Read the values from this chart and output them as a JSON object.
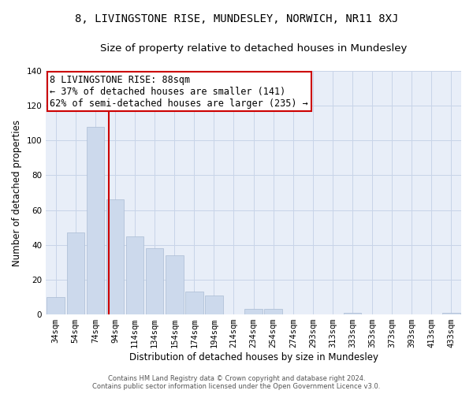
{
  "title": "8, LIVINGSTONE RISE, MUNDESLEY, NORWICH, NR11 8XJ",
  "subtitle": "Size of property relative to detached houses in Mundesley",
  "xlabel": "Distribution of detached houses by size in Mundesley",
  "ylabel": "Number of detached properties",
  "footer_line1": "Contains HM Land Registry data © Crown copyright and database right 2024.",
  "footer_line2": "Contains public sector information licensed under the Open Government Licence v3.0.",
  "annotation_line1": "8 LIVINGSTONE RISE: 88sqm",
  "annotation_line2": "← 37% of detached houses are smaller (141)",
  "annotation_line3": "62% of semi-detached houses are larger (235) →",
  "bar_labels": [
    "34sqm",
    "54sqm",
    "74sqm",
    "94sqm",
    "114sqm",
    "134sqm",
    "154sqm",
    "174sqm",
    "194sqm",
    "214sqm",
    "234sqm",
    "254sqm",
    "274sqm",
    "293sqm",
    "313sqm",
    "333sqm",
    "353sqm",
    "373sqm",
    "393sqm",
    "413sqm",
    "433sqm"
  ],
  "bar_values": [
    10,
    47,
    108,
    66,
    45,
    38,
    34,
    13,
    11,
    0,
    3,
    3,
    0,
    0,
    0,
    1,
    0,
    0,
    0,
    0,
    1
  ],
  "bar_color": "#ccd9ec",
  "bar_edge_color": "#aabbd4",
  "ylim": [
    0,
    140
  ],
  "yticks": [
    0,
    20,
    40,
    60,
    80,
    100,
    120,
    140
  ],
  "grid_color": "#c8d4e8",
  "background_color": "#e8eef8",
  "red_line_color": "#cc0000",
  "annotation_box_edge_color": "#cc0000",
  "title_fontsize": 10,
  "subtitle_fontsize": 9.5,
  "xlabel_fontsize": 8.5,
  "ylabel_fontsize": 8.5,
  "tick_fontsize": 7.5,
  "annotation_fontsize": 8.5,
  "footer_fontsize": 6
}
